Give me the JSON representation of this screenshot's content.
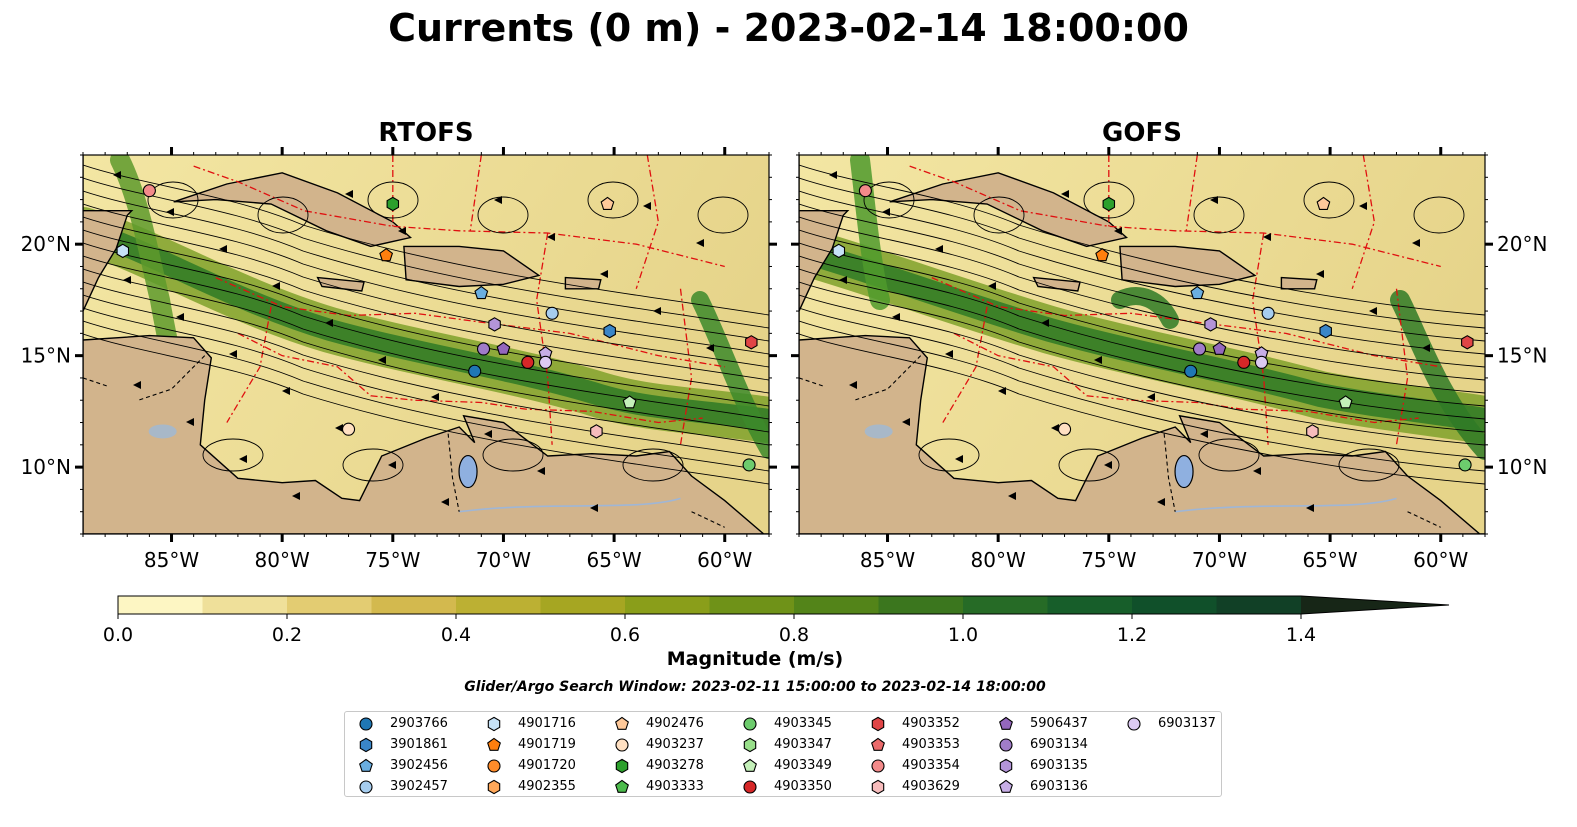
{
  "title": "Currents (0 m) - 2023-02-14 18:00:00",
  "panels": [
    {
      "name": "RTOFS"
    },
    {
      "name": "GOFS"
    }
  ],
  "x_ticks": [
    "85°W",
    "80°W",
    "75°W",
    "70°W",
    "65°W",
    "60°W"
  ],
  "y_ticks": [
    "20°N",
    "15°N",
    "10°N"
  ],
  "colorbar": {
    "label": "Magnitude (m/s)",
    "ticks": [
      "0.0",
      "0.2",
      "0.4",
      "0.6",
      "0.8",
      "1.0",
      "1.2",
      "1.4"
    ],
    "colors": [
      "#fdf6c3",
      "#efe09a",
      "#e3cc72",
      "#d3b94e",
      "#bcb033",
      "#a6a622",
      "#8a9e1a",
      "#6f9218",
      "#538419",
      "#3b761e",
      "#266b26",
      "#175e2a",
      "#10502a",
      "#114026",
      "#15311d",
      "#172617"
    ]
  },
  "search_window": "Glider/Argo Search Window: 2023-02-11 15:00:00 to 2023-02-14 18:00:00",
  "legend": [
    {
      "id": "2903766",
      "marker": "circle",
      "color": "#1f77b4"
    },
    {
      "id": "3901861",
      "marker": "hexagon",
      "color": "#3a86c8"
    },
    {
      "id": "3902456",
      "marker": "pentagon",
      "color": "#6aaee0"
    },
    {
      "id": "3902457",
      "marker": "circle",
      "color": "#a6cdef"
    },
    {
      "id": "4901716",
      "marker": "hexagon",
      "color": "#c6e2f7"
    },
    {
      "id": "4901719",
      "marker": "pentagon",
      "color": "#ff7f0e"
    },
    {
      "id": "4901720",
      "marker": "circle",
      "color": "#ff8c2a"
    },
    {
      "id": "4902355",
      "marker": "hexagon",
      "color": "#ffa85a"
    },
    {
      "id": "4902476",
      "marker": "pentagon",
      "color": "#ffc99a"
    },
    {
      "id": "4903237",
      "marker": "circle",
      "color": "#ffe0c2"
    },
    {
      "id": "4903278",
      "marker": "hexagon",
      "color": "#2ca02c"
    },
    {
      "id": "4903333",
      "marker": "pentagon",
      "color": "#4cbb4c"
    },
    {
      "id": "4903345",
      "marker": "circle",
      "color": "#6dcc6d"
    },
    {
      "id": "4903347",
      "marker": "hexagon",
      "color": "#98df8a"
    },
    {
      "id": "4903349",
      "marker": "pentagon",
      "color": "#c4f0b9"
    },
    {
      "id": "4903350",
      "marker": "circle",
      "color": "#d62728"
    },
    {
      "id": "4903352",
      "marker": "hexagon",
      "color": "#e04546"
    },
    {
      "id": "4903353",
      "marker": "pentagon",
      "color": "#ea6a6b"
    },
    {
      "id": "4903354",
      "marker": "circle",
      "color": "#f38a8a"
    },
    {
      "id": "4903629",
      "marker": "hexagon",
      "color": "#f7bcbc"
    },
    {
      "id": "5906437",
      "marker": "pentagon",
      "color": "#9467bd"
    },
    {
      "id": "6903134",
      "marker": "circle",
      "color": "#a07cc8"
    },
    {
      "id": "6903135",
      "marker": "hexagon",
      "color": "#b394d8"
    },
    {
      "id": "6903136",
      "marker": "pentagon",
      "color": "#c7aee6"
    },
    {
      "id": "6903137",
      "marker": "circle",
      "color": "#dccaf2"
    }
  ],
  "floats": [
    {
      "id": "2903766",
      "lon": -71.3,
      "lat": 14.3
    },
    {
      "id": "3901861",
      "lon": -65.2,
      "lat": 16.1
    },
    {
      "id": "3902456",
      "lon": -71.0,
      "lat": 17.8
    },
    {
      "id": "3902457",
      "lon": -67.8,
      "lat": 16.9
    },
    {
      "id": "4901716",
      "lon": -87.2,
      "lat": 19.7
    },
    {
      "id": "4901719",
      "lon": -75.3,
      "lat": 19.5
    },
    {
      "id": "4902476",
      "lon": -65.3,
      "lat": 21.8
    },
    {
      "id": "4903237",
      "lon": -77.0,
      "lat": 11.7
    },
    {
      "id": "4903278",
      "lon": -75.0,
      "lat": 21.8
    },
    {
      "id": "4903345",
      "lon": -58.9,
      "lat": 10.1
    },
    {
      "id": "4903349",
      "lon": -64.3,
      "lat": 12.9
    },
    {
      "id": "4903350",
      "lon": -68.9,
      "lat": 14.7
    },
    {
      "id": "4903352",
      "lon": -58.8,
      "lat": 15.6
    },
    {
      "id": "4903629",
      "lon": -65.8,
      "lat": 11.6
    },
    {
      "id": "5906437",
      "lon": -70.0,
      "lat": 15.3
    },
    {
      "id": "6903134",
      "lon": -70.9,
      "lat": 15.3
    },
    {
      "id": "6903135",
      "lon": -70.4,
      "lat": 16.4
    },
    {
      "id": "6903136",
      "lon": -68.1,
      "lat": 15.1
    },
    {
      "id": "6903137",
      "lon": -68.1,
      "lat": 14.7
    },
    {
      "id": "4903354",
      "lon": -86.0,
      "lat": 22.4
    }
  ]
}
